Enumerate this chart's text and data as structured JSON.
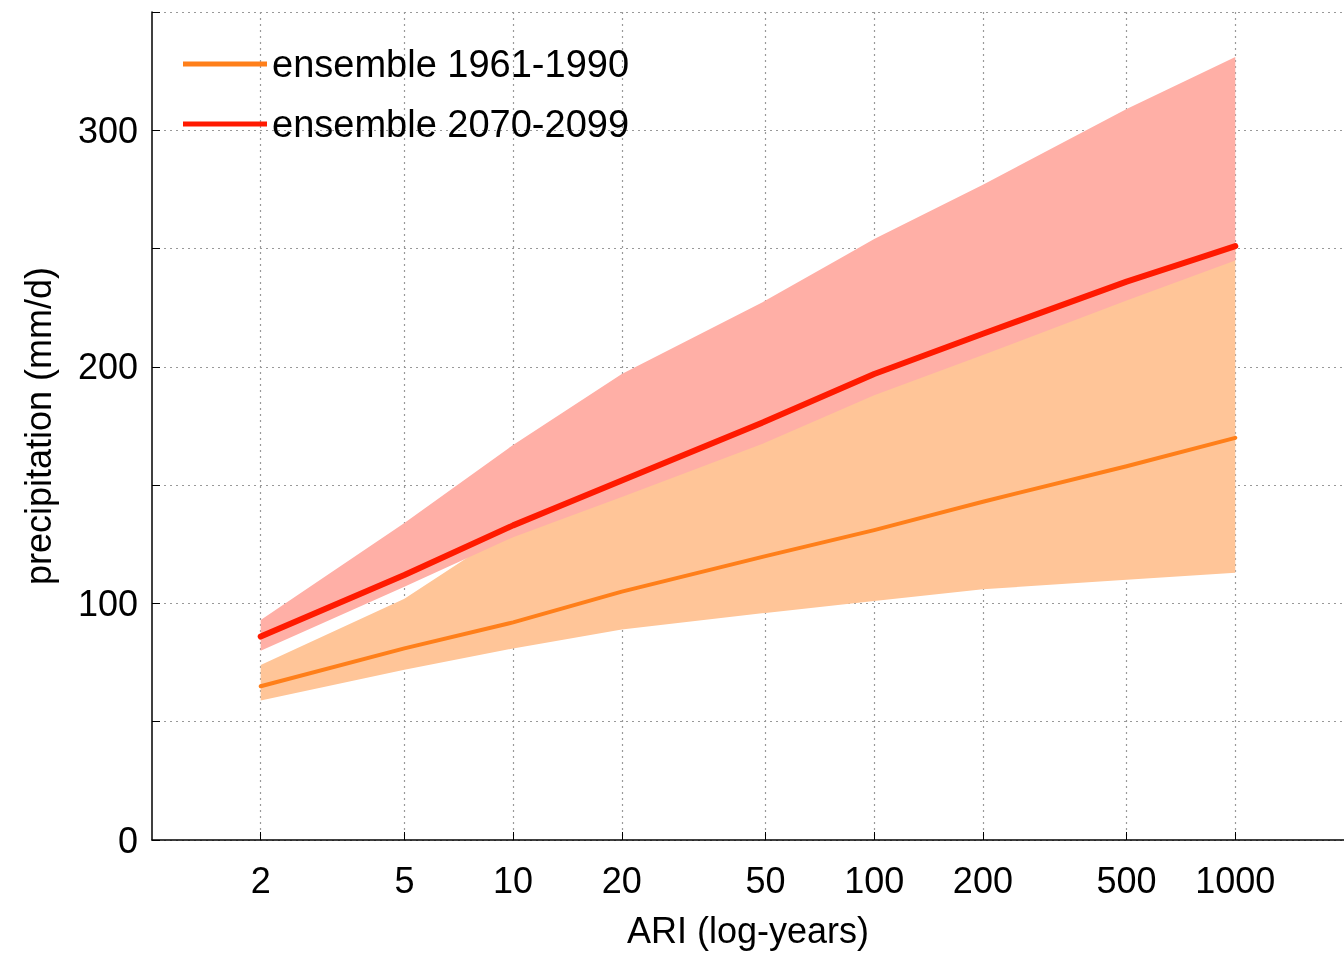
{
  "chart_data": {
    "type": "line",
    "xlabel": "ARI (log-years)",
    "ylabel": "precipitation (mm/d)",
    "x": [
      2,
      5,
      10,
      20,
      50,
      100,
      200,
      500,
      1000
    ],
    "series": [
      {
        "name": "ensemble 1961-1990",
        "color": "#ff7f1a",
        "values": [
          65,
          81,
          92,
          105,
          120,
          131,
          143,
          158,
          170
        ],
        "lower": [
          59,
          72,
          81,
          89,
          96,
          101,
          106,
          110,
          113
        ],
        "upper": [
          74,
          102,
          132,
          150,
          175,
          196,
          213,
          236,
          250
        ]
      },
      {
        "name": "ensemble 2070-2099",
        "color": "#ff1a00",
        "values": [
          86,
          112,
          133,
          152,
          177,
          197,
          214,
          236,
          251
        ],
        "lower": [
          80,
          107,
          128,
          145,
          168,
          188,
          205,
          228,
          245
        ],
        "upper": [
          93,
          134,
          167,
          197,
          228,
          254,
          277,
          309,
          331
        ]
      }
    ],
    "log": "x",
    "xlim": [
      1,
      2000
    ],
    "xticks": [
      2,
      5,
      10,
      20,
      50,
      100,
      200,
      500,
      1000
    ],
    "ylim": [
      0,
      350
    ],
    "yticks": [
      0,
      {
        "value": 50,
        "label": null
      },
      100,
      {
        "value": 150,
        "label": null
      },
      200,
      {
        "value": 250,
        "label": null
      },
      300,
      {
        "value": 350,
        "label": null
      }
    ],
    "grid": true,
    "legend": "top left",
    "marker": "none",
    "line_style": "solid"
  }
}
